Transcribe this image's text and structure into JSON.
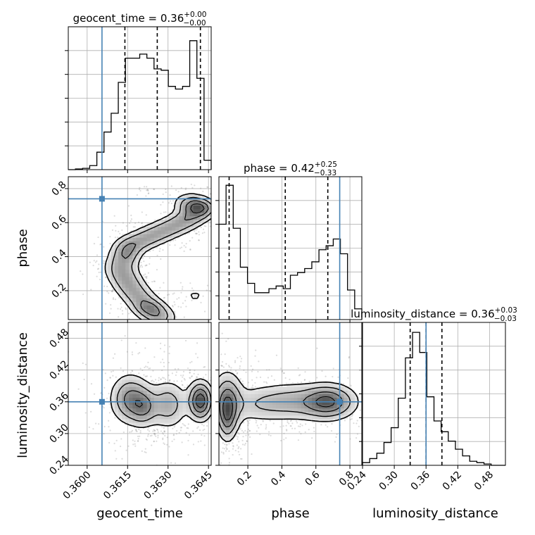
{
  "chart_data": {
    "type": "corner",
    "colors": {
      "truth": "#4682b4",
      "hist": "#000000",
      "grid": "#b0b0b0",
      "points": "#808080"
    },
    "parameters": [
      {
        "name": "geocent_time",
        "truth": 0.36055,
        "range": [
          0.3593,
          0.3646
        ],
        "quantiles": [
          0.3614,
          0.3626,
          0.3642
        ],
        "ticks": [
          0.36,
          0.3615,
          0.363,
          0.3645
        ],
        "tick_labels": [
          "0.3600",
          "0.3615",
          "0.3630",
          "0.3645"
        ],
        "title": {
          "main": "geocent_time = 0.36",
          "plus": "+0.00",
          "minus": "−0.00"
        }
      },
      {
        "name": "phase",
        "truth": 0.74,
        "range": [
          0.03,
          0.87
        ],
        "quantiles": [
          0.09,
          0.42,
          0.67
        ],
        "ticks": [
          0.2,
          0.4,
          0.6,
          0.8
        ],
        "tick_labels": [
          "0.2",
          "0.4",
          "0.6",
          "0.8"
        ],
        "title": {
          "main": "phase = 0.42",
          "plus": "+0.25",
          "minus": "−0.33"
        }
      },
      {
        "name": "luminosity_distance",
        "truth": 0.36,
        "range": [
          0.24,
          0.51
        ],
        "quantiles": [
          0.33,
          0.36,
          0.39
        ],
        "ticks": [
          0.24,
          0.3,
          0.36,
          0.42,
          0.48
        ],
        "tick_labels": [
          "0.24",
          "0.30",
          "0.36",
          "0.42",
          "0.48"
        ],
        "title": {
          "main": "luminosity_distance = 0.36",
          "plus": "+0.03",
          "minus": "−0.03"
        }
      }
    ],
    "histograms": {
      "geocent_time": [
        0.0,
        0.005,
        0.01,
        0.03,
        0.13,
        0.28,
        0.42,
        0.65,
        0.83,
        0.83,
        0.86,
        0.83,
        0.75,
        0.74,
        0.62,
        0.6,
        0.62,
        0.96,
        0.68,
        0.07
      ],
      "phase": [
        0.71,
        1.0,
        0.68,
        0.39,
        0.27,
        0.2,
        0.2,
        0.23,
        0.25,
        0.23,
        0.33,
        0.35,
        0.38,
        0.43,
        0.52,
        0.55,
        0.6,
        0.49,
        0.22,
        0.08
      ],
      "luminosity_distance": [
        0.02,
        0.05,
        0.09,
        0.17,
        0.28,
        0.5,
        0.8,
        0.99,
        0.84,
        0.51,
        0.33,
        0.25,
        0.18,
        0.12,
        0.07,
        0.03,
        0.02,
        0.01,
        0.0,
        0.0
      ]
    },
    "grid": true
  }
}
